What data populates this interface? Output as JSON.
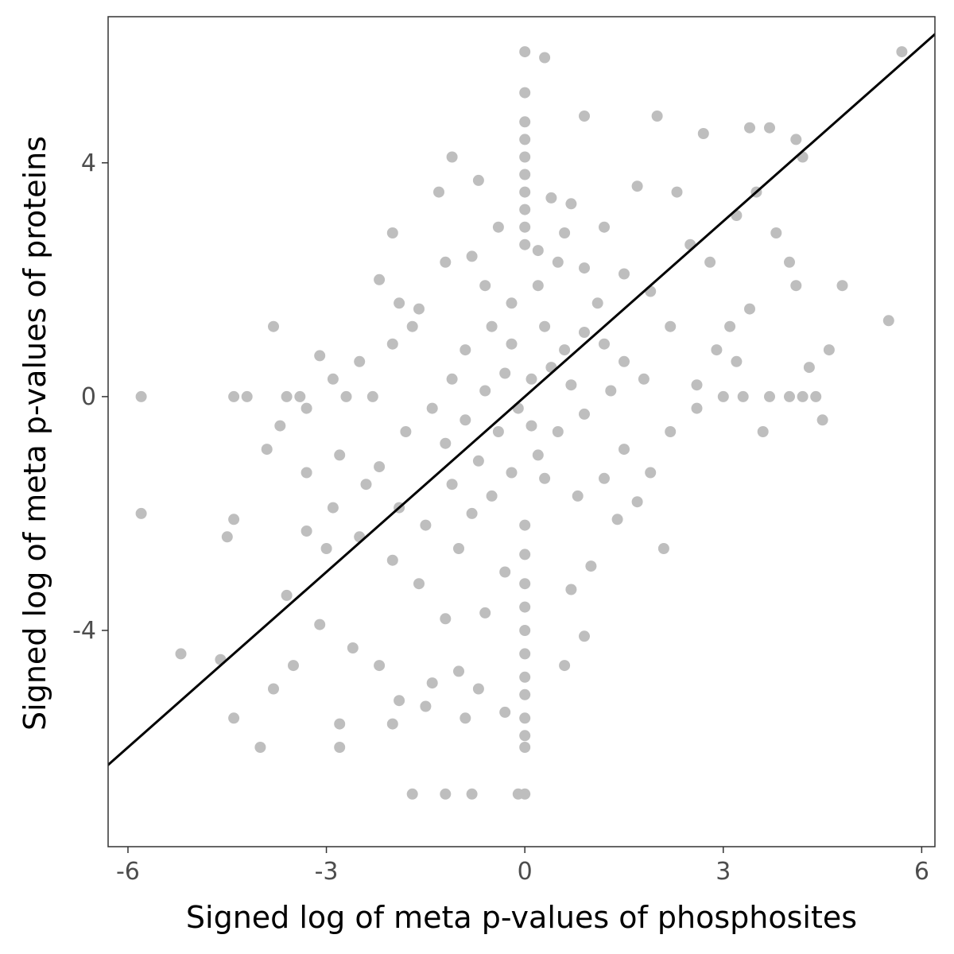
{
  "chart_data": {
    "type": "scatter",
    "title": "",
    "xlabel": "Signed log of meta p-values of phosphosites",
    "ylabel": "Signed log of meta p-values of proteins",
    "xlim": [
      -6.3,
      6.2
    ],
    "ylim": [
      -7.7,
      6.5
    ],
    "x_ticks": [
      -6,
      -3,
      0,
      3,
      6
    ],
    "y_ticks": [
      -4,
      0,
      4
    ],
    "x_tick_labels": [
      "-6",
      "-3",
      "0",
      "3",
      "6"
    ],
    "y_tick_labels": [
      "-4",
      "0",
      "4"
    ],
    "grid": false,
    "point_color": "#bebebe",
    "line_color": "#000000",
    "reference_line": {
      "slope": 1.0,
      "intercept": 0
    },
    "series": [
      {
        "values": [
          [
            5.7,
            5.9
          ],
          [
            5.5,
            1.3
          ],
          [
            -5.8,
            0.0
          ],
          [
            -5.8,
            -2.0
          ],
          [
            -5.2,
            -4.4
          ],
          [
            -4.6,
            -4.5
          ],
          [
            -4.4,
            -5.5
          ],
          [
            -4.0,
            -6.0
          ],
          [
            -4.5,
            -2.4
          ],
          [
            -4.4,
            -2.1
          ],
          [
            0.3,
            5.8
          ],
          [
            0.0,
            5.9
          ],
          [
            0.0,
            5.2
          ],
          [
            -1.7,
            -6.8
          ],
          [
            -1.2,
            -6.8
          ],
          [
            -0.8,
            -6.8
          ],
          [
            0.0,
            -6.8
          ],
          [
            -0.1,
            -6.8
          ],
          [
            0.9,
            4.8
          ],
          [
            2.0,
            4.8
          ],
          [
            2.7,
            4.5
          ],
          [
            3.4,
            4.6
          ],
          [
            3.7,
            4.6
          ],
          [
            4.1,
            4.4
          ],
          [
            4.2,
            4.1
          ],
          [
            4.8,
            1.9
          ],
          [
            4.6,
            0.8
          ],
          [
            4.3,
            0.5
          ],
          [
            4.5,
            -0.4
          ],
          [
            4.4,
            0.0
          ],
          [
            3.6,
            -0.6
          ],
          [
            2.1,
            -2.6
          ],
          [
            -3.8,
            1.2
          ],
          [
            -3.1,
            0.7
          ],
          [
            -4.4,
            0.0
          ],
          [
            -4.2,
            0.0
          ],
          [
            -3.6,
            0.0
          ],
          [
            -3.4,
            0.0
          ],
          [
            -2.7,
            0.0
          ],
          [
            -2.3,
            0.0
          ],
          [
            3.0,
            0.0
          ],
          [
            3.3,
            0.0
          ],
          [
            3.7,
            0.0
          ],
          [
            4.0,
            0.0
          ],
          [
            4.2,
            0.0
          ],
          [
            -1.3,
            3.5
          ],
          [
            -1.1,
            4.1
          ],
          [
            -0.7,
            3.7
          ],
          [
            -2.0,
            2.8
          ],
          [
            -2.2,
            2.0
          ],
          [
            -1.9,
            1.6
          ],
          [
            1.7,
            3.6
          ],
          [
            2.3,
            3.5
          ],
          [
            3.2,
            3.1
          ],
          [
            3.5,
            3.5
          ],
          [
            3.8,
            2.8
          ],
          [
            4.0,
            2.3
          ],
          [
            4.1,
            1.9
          ],
          [
            2.5,
            2.6
          ],
          [
            2.8,
            2.3
          ],
          [
            3.4,
            1.5
          ],
          [
            3.1,
            1.2
          ],
          [
            2.9,
            0.8
          ],
          [
            3.2,
            0.6
          ],
          [
            2.6,
            0.2
          ],
          [
            1.2,
            2.9
          ],
          [
            0.7,
            3.3
          ],
          [
            1.5,
            2.1
          ],
          [
            1.9,
            1.8
          ],
          [
            2.2,
            1.2
          ],
          [
            0.4,
            3.4
          ],
          [
            0.6,
            2.8
          ],
          [
            0.2,
            2.5
          ],
          [
            0.9,
            2.2
          ],
          [
            1.1,
            1.6
          ],
          [
            -0.4,
            2.9
          ],
          [
            -0.8,
            2.4
          ],
          [
            -1.2,
            2.3
          ],
          [
            -1.6,
            1.5
          ],
          [
            -0.6,
            1.9
          ],
          [
            -2.4,
            -1.5
          ],
          [
            -2.9,
            -1.9
          ],
          [
            -3.3,
            -2.3
          ],
          [
            -3.6,
            -3.4
          ],
          [
            -3.1,
            -3.9
          ],
          [
            -2.6,
            -4.3
          ],
          [
            -2.2,
            -4.6
          ],
          [
            -1.9,
            -5.2
          ],
          [
            -1.4,
            -4.9
          ],
          [
            -1.0,
            -4.7
          ],
          [
            -0.7,
            -5.0
          ],
          [
            -3.8,
            -5.0
          ],
          [
            -3.5,
            -4.6
          ],
          [
            -2.8,
            -6.0
          ],
          [
            -2.8,
            -5.6
          ],
          [
            -2.0,
            -5.6
          ],
          [
            -1.5,
            -5.3
          ],
          [
            -0.9,
            -5.5
          ],
          [
            -0.3,
            -5.4
          ],
          [
            0.0,
            -6.0
          ],
          [
            0.0,
            -5.8
          ],
          [
            0.0,
            -5.5
          ],
          [
            0.0,
            -5.1
          ],
          [
            0.0,
            -4.8
          ],
          [
            0.0,
            -4.4
          ],
          [
            0.0,
            -4.0
          ],
          [
            0.0,
            -3.6
          ],
          [
            0.0,
            -3.2
          ],
          [
            0.0,
            -2.7
          ],
          [
            0.0,
            -2.2
          ],
          [
            0.0,
            4.7
          ],
          [
            0.0,
            4.4
          ],
          [
            0.0,
            4.1
          ],
          [
            0.0,
            3.8
          ],
          [
            0.0,
            3.5
          ],
          [
            0.0,
            3.2
          ],
          [
            0.0,
            2.9
          ],
          [
            0.0,
            2.6
          ],
          [
            0.6,
            -4.6
          ],
          [
            0.9,
            -4.1
          ],
          [
            0.7,
            -3.3
          ],
          [
            1.0,
            -2.9
          ],
          [
            1.4,
            -2.1
          ],
          [
            1.7,
            -1.8
          ],
          [
            1.9,
            -1.3
          ],
          [
            2.2,
            -0.6
          ],
          [
            2.6,
            -0.2
          ],
          [
            1.5,
            -0.9
          ],
          [
            1.2,
            -1.4
          ],
          [
            0.8,
            -1.7
          ],
          [
            -1.7,
            1.2
          ],
          [
            -2.0,
            0.9
          ],
          [
            -2.5,
            0.6
          ],
          [
            -2.9,
            0.3
          ],
          [
            -3.3,
            -0.2
          ],
          [
            -3.7,
            -0.5
          ],
          [
            -3.9,
            -0.9
          ],
          [
            -3.3,
            -1.3
          ],
          [
            -2.8,
            -1.0
          ],
          [
            -3.0,
            -2.6
          ],
          [
            -2.5,
            -2.4
          ],
          [
            -2.0,
            -2.8
          ],
          [
            -1.6,
            -3.2
          ],
          [
            -1.2,
            -3.8
          ],
          [
            -0.6,
            -3.7
          ],
          [
            -0.3,
            -3.0
          ],
          [
            -1.0,
            -2.6
          ],
          [
            -1.5,
            -2.2
          ],
          [
            -1.9,
            -1.9
          ],
          [
            -2.2,
            -1.2
          ],
          [
            -1.8,
            -0.6
          ],
          [
            -1.4,
            -0.2
          ],
          [
            -1.1,
            0.3
          ],
          [
            -0.9,
            0.8
          ],
          [
            -0.5,
            1.2
          ],
          [
            -0.2,
            1.6
          ],
          [
            0.2,
            1.9
          ],
          [
            0.5,
            2.3
          ],
          [
            0.3,
            1.2
          ],
          [
            0.6,
            0.8
          ],
          [
            0.9,
            1.1
          ],
          [
            1.2,
            0.9
          ],
          [
            1.5,
            0.6
          ],
          [
            1.8,
            0.3
          ],
          [
            1.3,
            0.1
          ],
          [
            0.9,
            -0.3
          ],
          [
            0.5,
            -0.6
          ],
          [
            0.2,
            -1.0
          ],
          [
            -0.2,
            -1.3
          ],
          [
            -0.5,
            -1.7
          ],
          [
            -0.8,
            -2.0
          ],
          [
            -1.1,
            -1.5
          ],
          [
            -0.7,
            -1.1
          ],
          [
            -0.4,
            -0.6
          ],
          [
            -0.1,
            -0.2
          ],
          [
            0.1,
            0.3
          ],
          [
            0.4,
            0.5
          ],
          [
            0.7,
            0.2
          ],
          [
            -0.3,
            0.4
          ],
          [
            -0.6,
            0.1
          ],
          [
            -0.9,
            -0.4
          ],
          [
            -1.2,
            -0.8
          ],
          [
            -0.2,
            0.9
          ],
          [
            0.1,
            -0.5
          ],
          [
            0.3,
            -1.4
          ]
        ]
      }
    ]
  }
}
